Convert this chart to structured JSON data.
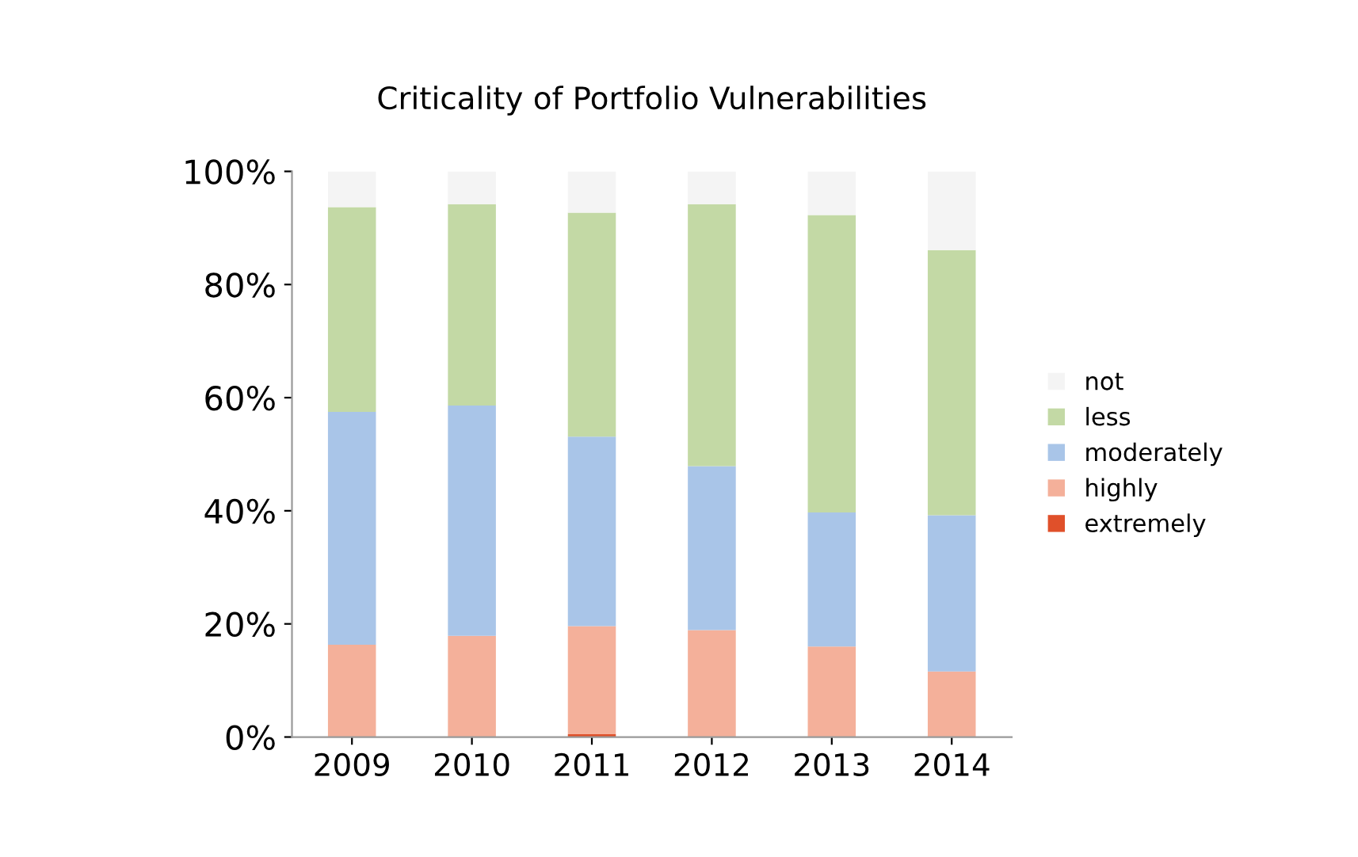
{
  "chart_data": {
    "type": "bar",
    "title": "Criticality of Portfolio Vulnerabilities",
    "categories": [
      "2009",
      "2010",
      "2011",
      "2012",
      "2013",
      "2014"
    ],
    "stacked": true,
    "series": [
      {
        "name": "extremely",
        "color": "#e0502a",
        "values": [
          0,
          0,
          0.5,
          0,
          0,
          0
        ]
      },
      {
        "name": "highly",
        "color": "#f4b09a",
        "values": [
          16.3,
          17.9,
          19.1,
          18.9,
          16.0,
          11.6
        ]
      },
      {
        "name": "moderately",
        "color": "#a9c5e8",
        "values": [
          41.2,
          40.7,
          33.5,
          29.0,
          23.7,
          27.6
        ]
      },
      {
        "name": "less",
        "color": "#c3d9a5",
        "values": [
          36.2,
          35.6,
          39.6,
          46.3,
          52.6,
          46.9
        ]
      },
      {
        "name": "not",
        "color": "#f4f4f4",
        "values": [
          6.3,
          5.8,
          7.3,
          5.8,
          7.7,
          13.9
        ]
      }
    ],
    "ylim": [
      0,
      100
    ],
    "yticks": [
      {
        "value": 0,
        "label": "0%"
      },
      {
        "value": 20,
        "label": "20%"
      },
      {
        "value": 40,
        "label": "40%"
      },
      {
        "value": 60,
        "label": "60%"
      },
      {
        "value": 80,
        "label": "80%"
      },
      {
        "value": 100,
        "label": "100%"
      }
    ],
    "grid": false,
    "legend": "right"
  }
}
